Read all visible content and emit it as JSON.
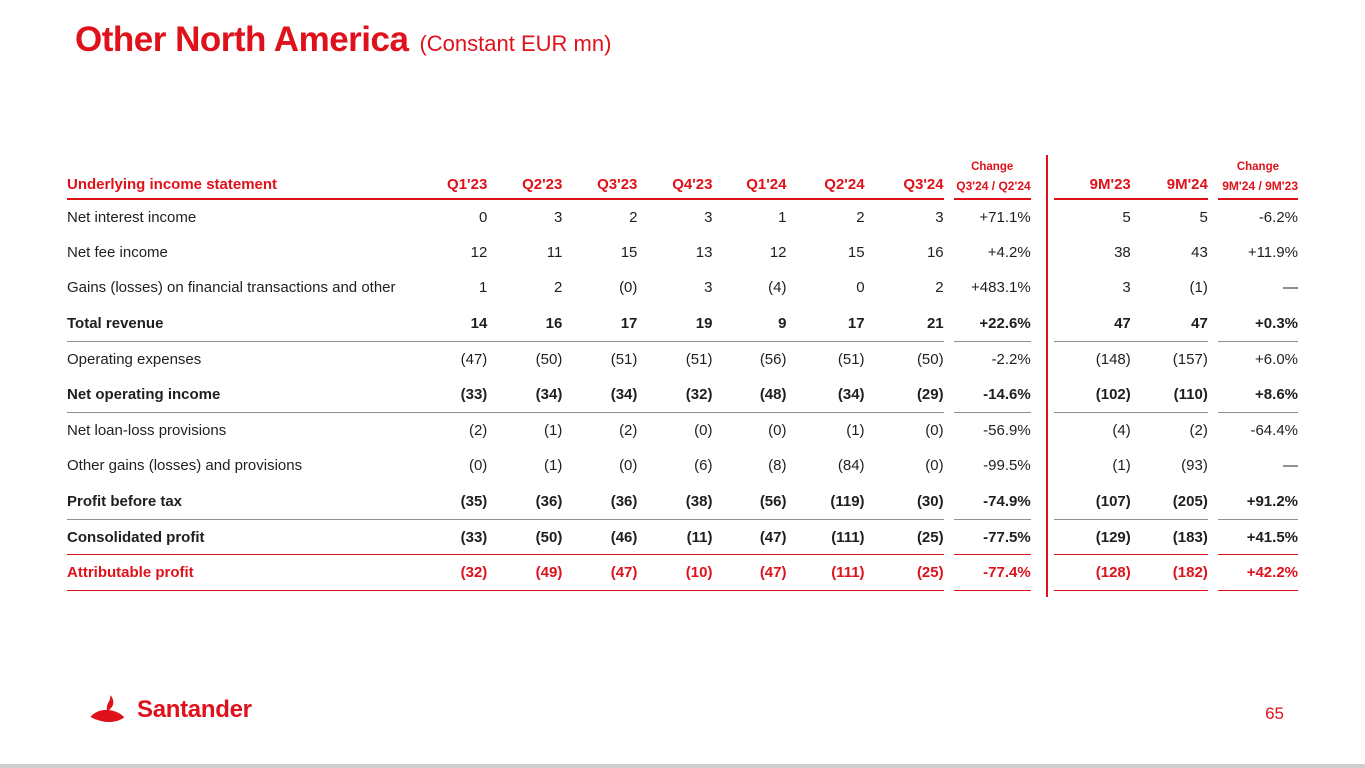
{
  "slide": {
    "title": "Other North America",
    "subtitle": "(Constant EUR mn)",
    "page_number": "65",
    "logo_text": "Santander"
  },
  "colors": {
    "brand_red": "#DF111B",
    "text_dark": "#1F1F1F",
    "separator_gray": "#919191"
  },
  "table": {
    "header": {
      "label": "Underlying income statement",
      "quarters": [
        "Q1'23",
        "Q2'23",
        "Q3'23",
        "Q4'23",
        "Q1'24",
        "Q2'24",
        "Q3'24"
      ],
      "change_q": {
        "line1": "Change",
        "line2": "Q3'24 / Q2'24"
      },
      "nine_months": [
        "9M'23",
        "9M'24"
      ],
      "change_9m": {
        "line1": "Change",
        "line2": "9M'24 / 9M'23"
      }
    },
    "rows": [
      {
        "label": "Net interest income",
        "values": [
          "0",
          "3",
          "2",
          "3",
          "1",
          "2",
          "3"
        ],
        "change_q": "+71.1%",
        "nine_months": [
          "5",
          "5"
        ],
        "change_9m": "-6.2%",
        "bold": false,
        "red": false,
        "separator": null
      },
      {
        "label": "Net fee income",
        "values": [
          "12",
          "11",
          "15",
          "13",
          "12",
          "15",
          "16"
        ],
        "change_q": "+4.2%",
        "nine_months": [
          "38",
          "43"
        ],
        "change_9m": "+11.9%",
        "bold": false,
        "red": false,
        "separator": null
      },
      {
        "label": "Gains (losses) on financial transactions and other",
        "values": [
          "1",
          "2",
          "(0)",
          "3",
          "(4)",
          "0",
          "2"
        ],
        "change_q": "+483.1%",
        "nine_months": [
          "3",
          "(1)"
        ],
        "change_9m": "—",
        "bold": false,
        "red": false,
        "separator": null
      },
      {
        "label": "Total revenue",
        "values": [
          "14",
          "16",
          "17",
          "19",
          "9",
          "17",
          "21"
        ],
        "change_q": "+22.6%",
        "nine_months": [
          "47",
          "47"
        ],
        "change_9m": "+0.3%",
        "bold": true,
        "red": false,
        "separator": "gray"
      },
      {
        "label": "Operating expenses",
        "values": [
          "(47)",
          "(50)",
          "(51)",
          "(51)",
          "(56)",
          "(51)",
          "(50)"
        ],
        "change_q": "-2.2%",
        "nine_months": [
          "(148)",
          "(157)"
        ],
        "change_9m": "+6.0%",
        "bold": false,
        "red": false,
        "separator": null
      },
      {
        "label": "Net operating income",
        "values": [
          "(33)",
          "(34)",
          "(34)",
          "(32)",
          "(48)",
          "(34)",
          "(29)"
        ],
        "change_q": "-14.6%",
        "nine_months": [
          "(102)",
          "(110)"
        ],
        "change_9m": "+8.6%",
        "bold": true,
        "red": false,
        "separator": "gray"
      },
      {
        "label": "Net loan-loss provisions",
        "values": [
          "(2)",
          "(1)",
          "(2)",
          "(0)",
          "(0)",
          "(1)",
          "(0)"
        ],
        "change_q": "-56.9%",
        "nine_months": [
          "(4)",
          "(2)"
        ],
        "change_9m": "-64.4%",
        "bold": false,
        "red": false,
        "separator": null
      },
      {
        "label": "Other gains (losses) and provisions",
        "values": [
          "(0)",
          "(1)",
          "(0)",
          "(6)",
          "(8)",
          "(84)",
          "(0)"
        ],
        "change_q": "-99.5%",
        "nine_months": [
          "(1)",
          "(93)"
        ],
        "change_9m": "—",
        "bold": false,
        "red": false,
        "separator": null
      },
      {
        "label": "Profit before tax",
        "values": [
          "(35)",
          "(36)",
          "(36)",
          "(38)",
          "(56)",
          "(119)",
          "(30)"
        ],
        "change_q": "-74.9%",
        "nine_months": [
          "(107)",
          "(205)"
        ],
        "change_9m": "+91.2%",
        "bold": true,
        "red": false,
        "separator": "gray"
      },
      {
        "label": "Consolidated profit",
        "values": [
          "(33)",
          "(50)",
          "(46)",
          "(11)",
          "(47)",
          "(111)",
          "(25)"
        ],
        "change_q": "-77.5%",
        "nine_months": [
          "(129)",
          "(183)"
        ],
        "change_9m": "+41.5%",
        "bold": true,
        "red": false,
        "separator": "red"
      },
      {
        "label": "Attributable profit",
        "values": [
          "(32)",
          "(49)",
          "(47)",
          "(10)",
          "(47)",
          "(111)",
          "(25)"
        ],
        "change_q": "-77.4%",
        "nine_months": [
          "(128)",
          "(182)"
        ],
        "change_9m": "+42.2%",
        "bold": true,
        "red": true,
        "separator": "red"
      }
    ]
  }
}
